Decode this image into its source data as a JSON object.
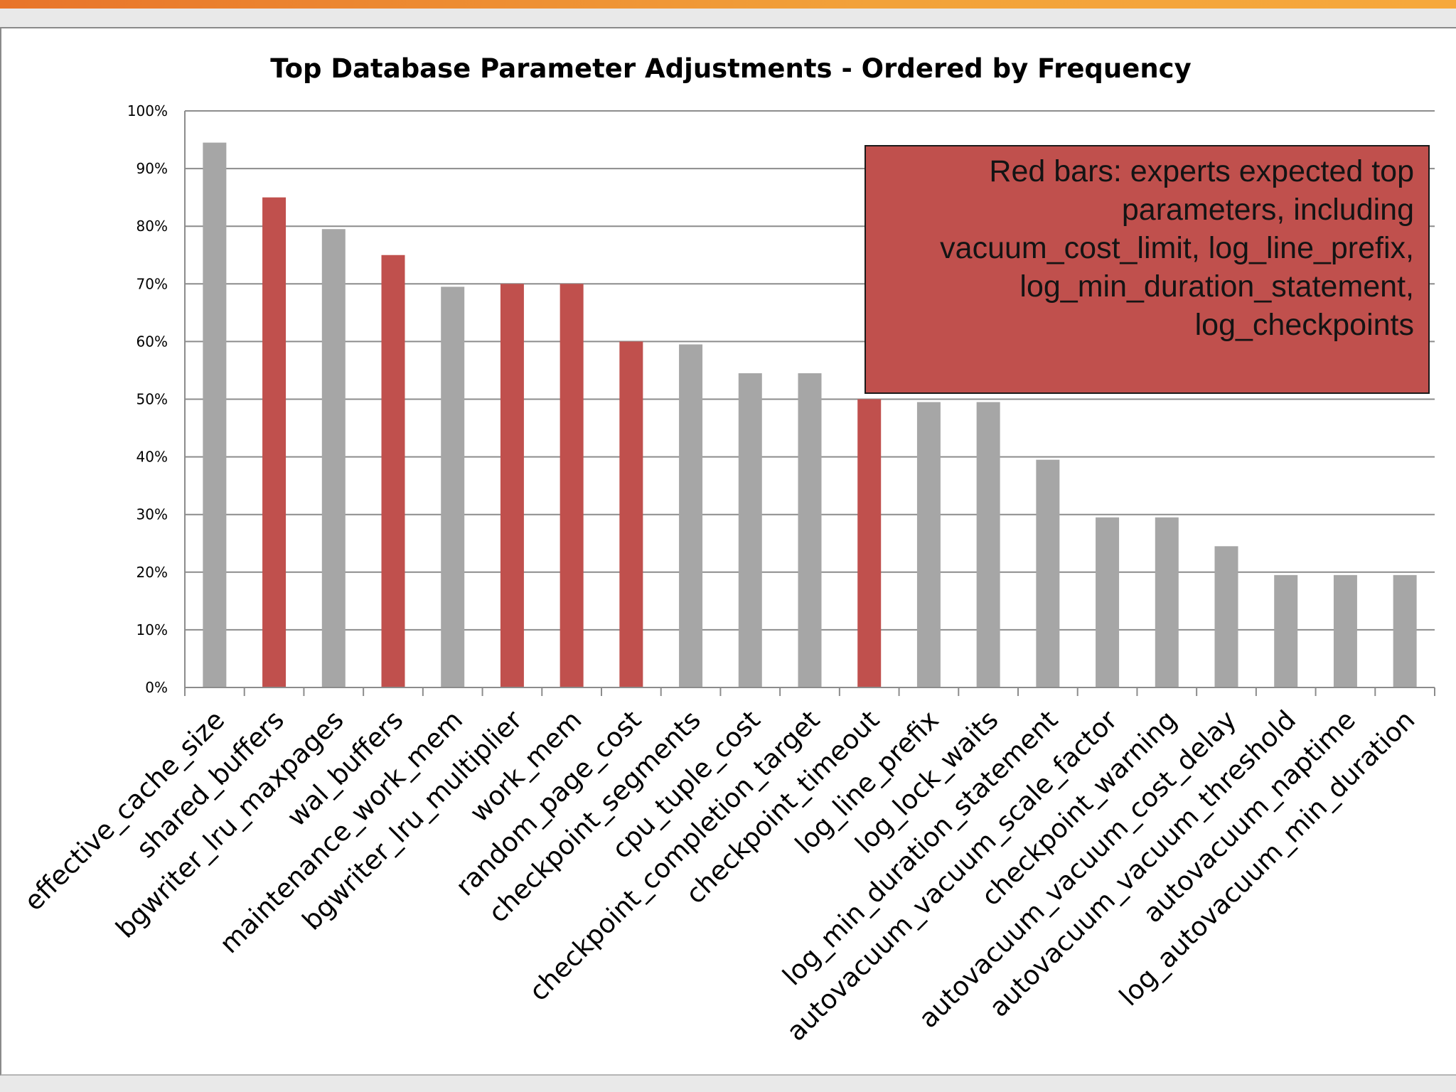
{
  "chart_data": {
    "type": "bar",
    "title": "Top Database Parameter Adjustments - Ordered by Frequency",
    "xlabel": "",
    "ylabel": "",
    "ylim": [
      0,
      100
    ],
    "yticks": [
      "0%",
      "10%",
      "20%",
      "30%",
      "40%",
      "50%",
      "60%",
      "70%",
      "80%",
      "90%",
      "100%"
    ],
    "grid": true,
    "categories": [
      "effective_cache_size",
      "shared_buffers",
      "bgwriter_lru_maxpages",
      "wal_buffers",
      "maintenance_work_mem",
      "bgwriter_lru_multiplier",
      "work_mem",
      "random_page_cost",
      "checkpoint_segments",
      "cpu_tuple_cost",
      "checkpoint_completion_target",
      "checkpoint_timeout",
      "log_line_prefix",
      "log_lock_waits",
      "log_min_duration_statement",
      "autovacuum_vacuum_scale_factor",
      "checkpoint_warning",
      "autovacuum_vacuum_cost_delay",
      "autovacuum_vacuum_threshold",
      "autovacuum_naptime",
      "log_autovacuum_min_duration"
    ],
    "values": [
      94.5,
      85,
      79.5,
      75,
      69.5,
      70,
      70,
      60,
      59.5,
      54.5,
      54.5,
      50,
      49.5,
      49.5,
      39.5,
      29.5,
      29.5,
      24.5,
      19.5,
      19.5,
      19.5
    ],
    "expert_expected": [
      false,
      true,
      false,
      true,
      false,
      true,
      true,
      true,
      false,
      false,
      false,
      true,
      false,
      false,
      false,
      false,
      false,
      false,
      false,
      false,
      false
    ],
    "colors": {
      "expert": "#c0504d",
      "other": "#a6a6a6"
    },
    "annotation": "Red bars: experts expected top parameters, including vacuum_cost_limit, log_line_prefix, log_min_duration_statement, log_checkpoints"
  }
}
